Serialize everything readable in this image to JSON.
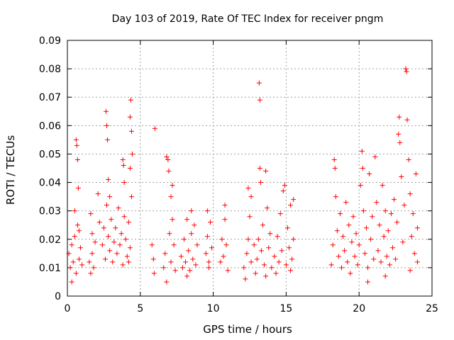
{
  "chart_data": {
    "type": "scatter",
    "title": "Day 103 of 2019, Rate Of TEC Index for receiver pngm",
    "xlabel": "GPS time / hours",
    "ylabel": "ROTI / TECUs",
    "xlim": [
      0,
      25
    ],
    "ylim": [
      0,
      0.09
    ],
    "x_ticks": [
      0,
      5,
      10,
      15,
      20,
      25
    ],
    "x_tick_labels": [
      "0",
      "5",
      "10",
      "15",
      "20",
      "25"
    ],
    "y_ticks": [
      0,
      0.01,
      0.02,
      0.03,
      0.04,
      0.05,
      0.06,
      0.07,
      0.08,
      0.09
    ],
    "y_tick_labels": [
      "0",
      "0.01",
      "0.02",
      "0.03",
      "0.04",
      "0.05",
      "0.06",
      "0.07",
      "0.08",
      "0.09"
    ],
    "grid": true,
    "marker": "+",
    "marker_color": "#ff0000",
    "series": [
      {
        "name": "ROTI",
        "points": [
          [
            0.1,
            0.015
          ],
          [
            0.2,
            0.01
          ],
          [
            0.3,
            0.018
          ],
          [
            0.4,
            0.012
          ],
          [
            0.5,
            0.021
          ],
          [
            0.6,
            0.008
          ],
          [
            0.7,
            0.025
          ],
          [
            0.8,
            0.013
          ],
          [
            0.9,
            0.017
          ],
          [
            1.0,
            0.011
          ],
          [
            0.6,
            0.055
          ],
          [
            0.65,
            0.053
          ],
          [
            0.7,
            0.048
          ],
          [
            0.75,
            0.038
          ],
          [
            0.3,
            0.005
          ],
          [
            0.5,
            0.03
          ],
          [
            0.8,
            0.023
          ],
          [
            1.5,
            0.012
          ],
          [
            1.6,
            0.008
          ],
          [
            1.7,
            0.015
          ],
          [
            1.8,
            0.01
          ],
          [
            1.9,
            0.019
          ],
          [
            1.6,
            0.029
          ],
          [
            1.7,
            0.022
          ],
          [
            2.1,
            0.036
          ],
          [
            2.2,
            0.026
          ],
          [
            2.4,
            0.018
          ],
          [
            2.5,
            0.024
          ],
          [
            2.6,
            0.013
          ],
          [
            2.7,
            0.032
          ],
          [
            2.8,
            0.021
          ],
          [
            2.9,
            0.016
          ],
          [
            3.0,
            0.027
          ],
          [
            3.1,
            0.012
          ],
          [
            3.2,
            0.019
          ],
          [
            2.65,
            0.065
          ],
          [
            2.7,
            0.06
          ],
          [
            2.75,
            0.055
          ],
          [
            2.8,
            0.041
          ],
          [
            2.9,
            0.035
          ],
          [
            3.3,
            0.024
          ],
          [
            3.4,
            0.015
          ],
          [
            3.5,
            0.031
          ],
          [
            3.6,
            0.018
          ],
          [
            3.7,
            0.022
          ],
          [
            3.8,
            0.011
          ],
          [
            3.9,
            0.028
          ],
          [
            3.8,
            0.048
          ],
          [
            3.85,
            0.046
          ],
          [
            3.9,
            0.04
          ],
          [
            4.0,
            0.02
          ],
          [
            4.1,
            0.014
          ],
          [
            4.2,
            0.026
          ],
          [
            4.3,
            0.063
          ],
          [
            4.35,
            0.069
          ],
          [
            4.4,
            0.058
          ],
          [
            4.45,
            0.05
          ],
          [
            4.3,
            0.045
          ],
          [
            4.4,
            0.035
          ],
          [
            4.2,
            0.012
          ],
          [
            4.3,
            0.017
          ],
          [
            5.8,
            0.018
          ],
          [
            5.9,
            0.013
          ],
          [
            5.95,
            0.008
          ],
          [
            6.0,
            0.059
          ],
          [
            6.6,
            0.01
          ],
          [
            6.7,
            0.015
          ],
          [
            6.8,
            0.049
          ],
          [
            6.9,
            0.048
          ],
          [
            6.95,
            0.044
          ],
          [
            7.0,
            0.022
          ],
          [
            7.1,
            0.012
          ],
          [
            7.2,
            0.027
          ],
          [
            7.3,
            0.018
          ],
          [
            7.4,
            0.009
          ],
          [
            7.1,
            0.035
          ],
          [
            7.2,
            0.039
          ],
          [
            6.8,
            0.005
          ],
          [
            7.8,
            0.014
          ],
          [
            7.9,
            0.01
          ],
          [
            8.0,
            0.02
          ],
          [
            8.1,
            0.012
          ],
          [
            8.2,
            0.027
          ],
          [
            8.3,
            0.016
          ],
          [
            8.4,
            0.009
          ],
          [
            8.5,
            0.022
          ],
          [
            8.6,
            0.013
          ],
          [
            8.7,
            0.025
          ],
          [
            8.8,
            0.011
          ],
          [
            8.9,
            0.018
          ],
          [
            8.5,
            0.03
          ],
          [
            8.2,
            0.007
          ],
          [
            9.5,
            0.015
          ],
          [
            9.6,
            0.021
          ],
          [
            9.7,
            0.012
          ],
          [
            9.8,
            0.026
          ],
          [
            9.9,
            0.017
          ],
          [
            9.6,
            0.03
          ],
          [
            9.7,
            0.01
          ],
          [
            10.5,
            0.012
          ],
          [
            10.6,
            0.02
          ],
          [
            10.7,
            0.014
          ],
          [
            10.8,
            0.027
          ],
          [
            10.9,
            0.018
          ],
          [
            11.0,
            0.009
          ],
          [
            10.8,
            0.032
          ],
          [
            12.1,
            0.01
          ],
          [
            12.2,
            0.006
          ],
          [
            12.3,
            0.015
          ],
          [
            12.4,
            0.02
          ],
          [
            12.5,
            0.028
          ],
          [
            12.6,
            0.012
          ],
          [
            12.8,
            0.018
          ],
          [
            12.9,
            0.008
          ],
          [
            12.4,
            0.038
          ],
          [
            12.6,
            0.035
          ],
          [
            13.0,
            0.013
          ],
          [
            13.1,
            0.02
          ],
          [
            13.15,
            0.075
          ],
          [
            13.2,
            0.069
          ],
          [
            13.2,
            0.045
          ],
          [
            13.25,
            0.04
          ],
          [
            13.3,
            0.016
          ],
          [
            13.4,
            0.025
          ],
          [
            13.5,
            0.011
          ],
          [
            13.6,
            0.044
          ],
          [
            13.7,
            0.031
          ],
          [
            13.8,
            0.017
          ],
          [
            13.9,
            0.022
          ],
          [
            14.0,
            0.01
          ],
          [
            13.6,
            0.007
          ],
          [
            14.2,
            0.014
          ],
          [
            14.3,
            0.008
          ],
          [
            14.4,
            0.021
          ],
          [
            14.5,
            0.012
          ],
          [
            14.6,
            0.029
          ],
          [
            14.7,
            0.016
          ],
          [
            14.8,
            0.037
          ],
          [
            14.9,
            0.039
          ],
          [
            15.0,
            0.011
          ],
          [
            15.1,
            0.024
          ],
          [
            15.2,
            0.017
          ],
          [
            15.3,
            0.032
          ],
          [
            15.4,
            0.013
          ],
          [
            15.5,
            0.02
          ],
          [
            15.5,
            0.034
          ],
          [
            15.3,
            0.009
          ],
          [
            18.1,
            0.011
          ],
          [
            18.2,
            0.018
          ],
          [
            18.3,
            0.048
          ],
          [
            18.35,
            0.045
          ],
          [
            18.4,
            0.035
          ],
          [
            18.5,
            0.023
          ],
          [
            18.6,
            0.014
          ],
          [
            18.7,
            0.029
          ],
          [
            18.8,
            0.01
          ],
          [
            18.9,
            0.021
          ],
          [
            19.0,
            0.016
          ],
          [
            19.1,
            0.033
          ],
          [
            19.2,
            0.012
          ],
          [
            19.3,
            0.025
          ],
          [
            19.4,
            0.008
          ],
          [
            19.5,
            0.019
          ],
          [
            19.6,
            0.028
          ],
          [
            19.7,
            0.014
          ],
          [
            19.8,
            0.022
          ],
          [
            19.9,
            0.011
          ],
          [
            20.0,
            0.018
          ],
          [
            20.1,
            0.039
          ],
          [
            20.2,
            0.051
          ],
          [
            20.25,
            0.045
          ],
          [
            20.3,
            0.03
          ],
          [
            20.4,
            0.015
          ],
          [
            20.5,
            0.024
          ],
          [
            20.6,
            0.01
          ],
          [
            20.7,
            0.043
          ],
          [
            20.8,
            0.02
          ],
          [
            20.9,
            0.028
          ],
          [
            21.0,
            0.013
          ],
          [
            21.1,
            0.049
          ],
          [
            21.2,
            0.033
          ],
          [
            21.3,
            0.016
          ],
          [
            21.4,
            0.025
          ],
          [
            21.5,
            0.012
          ],
          [
            21.6,
            0.039
          ],
          [
            21.7,
            0.021
          ],
          [
            21.8,
            0.03
          ],
          [
            21.9,
            0.014
          ],
          [
            22.0,
            0.023
          ],
          [
            22.1,
            0.011
          ],
          [
            22.2,
            0.029
          ],
          [
            22.3,
            0.017
          ],
          [
            22.4,
            0.034
          ],
          [
            22.5,
            0.013
          ],
          [
            22.6,
            0.026
          ],
          [
            22.7,
            0.057
          ],
          [
            22.75,
            0.063
          ],
          [
            22.8,
            0.054
          ],
          [
            22.9,
            0.042
          ],
          [
            23.0,
            0.019
          ],
          [
            23.1,
            0.032
          ],
          [
            23.2,
            0.08
          ],
          [
            23.25,
            0.079
          ],
          [
            23.3,
            0.062
          ],
          [
            23.4,
            0.048
          ],
          [
            23.5,
            0.036
          ],
          [
            23.6,
            0.021
          ],
          [
            23.7,
            0.029
          ],
          [
            23.8,
            0.015
          ],
          [
            23.9,
            0.043
          ],
          [
            24.0,
            0.024
          ],
          [
            24.0,
            0.012
          ],
          [
            20.6,
            0.005
          ],
          [
            21.8,
            0.007
          ],
          [
            23.5,
            0.009
          ]
        ]
      }
    ]
  }
}
